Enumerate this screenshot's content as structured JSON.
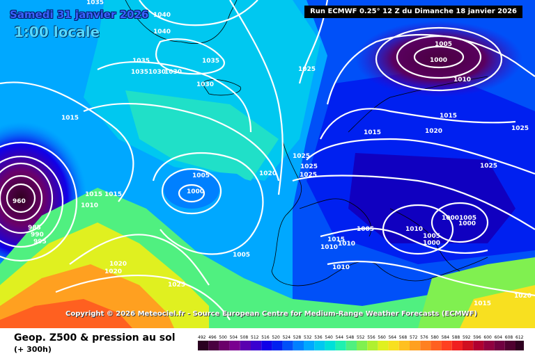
{
  "header": {
    "date": "Samedi 31 janvier 2026",
    "time": "1:00 locale",
    "run": "Run ECMWF 0.25° 12 Z du Dimanche 18 janvier 2026"
  },
  "copyright": "Copyright © 2026 Meteociel.fr - Source European Centre for Medium-Range Weather Forecasts (ECMWF)",
  "footer": {
    "title": "Geop. Z500 & pression au sol",
    "subtitle": "(+ 300h)"
  },
  "legend": {
    "ticks": [
      "492",
      "496",
      "500",
      "504",
      "508",
      "512",
      "516",
      "520",
      "524",
      "528",
      "532",
      "536",
      "540",
      "544",
      "548",
      "552",
      "556",
      "560",
      "564",
      "568",
      "572",
      "576",
      "580",
      "584",
      "588",
      "592",
      "596",
      "600",
      "604",
      "608",
      "612"
    ],
    "colors": [
      "#2a0020",
      "#4a0040",
      "#6a006a",
      "#7a0090",
      "#5a00b0",
      "#3a00d0",
      "#1000e8",
      "#0020f0",
      "#0050f8",
      "#0080ff",
      "#00a8ff",
      "#00c8f0",
      "#00e0d8",
      "#20f0b0",
      "#50f080",
      "#80f050",
      "#b0f030",
      "#e0f020",
      "#f8e020",
      "#ffc020",
      "#ffa020",
      "#ff8020",
      "#ff6020",
      "#ff4020",
      "#f02020",
      "#d01020",
      "#b00030",
      "#900040",
      "#700040",
      "#500030",
      "#300020"
    ]
  },
  "map": {
    "labels": [
      {
        "text": "1040"
      },
      {
        "text": "1040"
      },
      {
        "text": "1035"
      },
      {
        "text": "1035"
      },
      {
        "text": "1030"
      },
      {
        "text": "1030"
      },
      {
        "text": "1035"
      },
      {
        "text": "1030"
      },
      {
        "text": "1025"
      },
      {
        "text": "1015"
      },
      {
        "text": "1005"
      },
      {
        "text": "1000"
      },
      {
        "text": "1010"
      },
      {
        "text": "1015"
      },
      {
        "text": "1020"
      },
      {
        "text": "1025"
      },
      {
        "text": "1025"
      },
      {
        "text": "1015"
      },
      {
        "text": "1025"
      },
      {
        "text": "1025"
      },
      {
        "text": "1025"
      },
      {
        "text": "1020"
      },
      {
        "text": "1005"
      },
      {
        "text": "1000"
      },
      {
        "text": "1015"
      },
      {
        "text": "1010"
      },
      {
        "text": "1015"
      },
      {
        "text": "960"
      },
      {
        "text": "985"
      },
      {
        "text": "990"
      },
      {
        "text": "995"
      },
      {
        "text": "1020"
      },
      {
        "text": "1020"
      },
      {
        "text": "1025"
      },
      {
        "text": "1005"
      },
      {
        "text": "1010"
      },
      {
        "text": "1015"
      },
      {
        "text": "1010"
      },
      {
        "text": "1010"
      },
      {
        "text": "1005"
      },
      {
        "text": "1010"
      },
      {
        "text": "1005"
      },
      {
        "text": "1000"
      },
      {
        "text": "1000"
      },
      {
        "text": "1000"
      },
      {
        "text": "1015"
      },
      {
        "text": "1020"
      },
      {
        "text": "1005"
      },
      {
        "text": "1035"
      }
    ]
  }
}
